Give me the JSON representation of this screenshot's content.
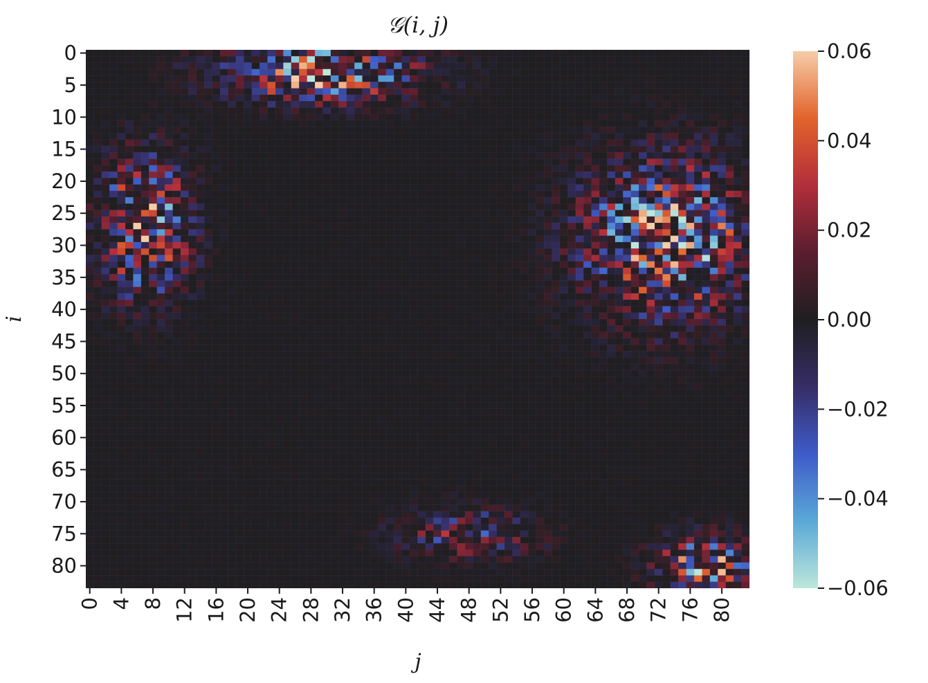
{
  "chart_data": {
    "type": "heatmap",
    "title": "𝒢(i, j)",
    "xlabel": "j",
    "ylabel": "i",
    "n_rows": 84,
    "n_cols": 84,
    "x_ticks": [
      "0",
      "4",
      "8",
      "12",
      "16",
      "20",
      "24",
      "28",
      "32",
      "36",
      "40",
      "44",
      "48",
      "52",
      "56",
      "60",
      "64",
      "68",
      "72",
      "76",
      "80"
    ],
    "y_ticks": [
      "0",
      "5",
      "10",
      "15",
      "20",
      "25",
      "30",
      "35",
      "40",
      "45",
      "50",
      "55",
      "60",
      "65",
      "70",
      "75",
      "80"
    ],
    "colorbar": {
      "vmin": -0.06,
      "vmax": 0.06,
      "ticks": [
        "0.06",
        "0.04",
        "0.02",
        "0.00",
        "−0.02",
        "−0.04",
        "−0.06"
      ],
      "colormap": "icefire",
      "stops": [
        {
          "v": -0.06,
          "color": "#bde7db"
        },
        {
          "v": -0.045,
          "color": "#5aa8d8"
        },
        {
          "v": -0.03,
          "color": "#3e5bc8"
        },
        {
          "v": -0.015,
          "color": "#362d66"
        },
        {
          "v": 0.0,
          "color": "#1f1e21"
        },
        {
          "v": 0.015,
          "color": "#5a1e2f"
        },
        {
          "v": 0.03,
          "color": "#b22e3b"
        },
        {
          "v": 0.045,
          "color": "#e2632c"
        },
        {
          "v": 0.06,
          "color": "#f6cda8"
        }
      ]
    },
    "clusters": [
      {
        "row": 3,
        "col": 29,
        "row_spread": 3.2,
        "col_spread": 8.5,
        "amplitude": 0.07
      },
      {
        "row": 27,
        "col": 7,
        "row_spread": 7.5,
        "col_spread": 4.0,
        "amplitude": 0.065
      },
      {
        "row": 29,
        "col": 73,
        "row_spread": 8.5,
        "col_spread": 7.5,
        "amplitude": 0.068
      },
      {
        "row": 75,
        "col": 48,
        "row_spread": 2.8,
        "col_spread": 6.0,
        "amplitude": 0.035
      },
      {
        "row": 80,
        "col": 78,
        "row_spread": 3.2,
        "col_spread": 4.5,
        "amplitude": 0.06
      }
    ]
  }
}
